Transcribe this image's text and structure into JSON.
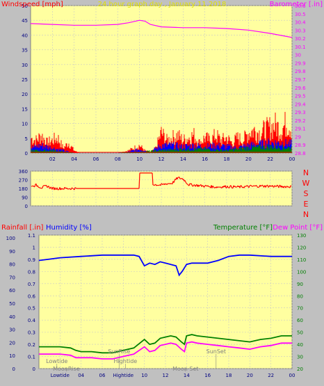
{
  "colors": {
    "background": "#c0c0c0",
    "plot_bg": "#ffffa0",
    "grid": "#c8c8c8",
    "wind": "#ff0000",
    "wind_blue": "#0000ff",
    "wind_green": "#008000",
    "barometer": "#ff00ff",
    "title": "#e0e000",
    "direction": "#ff0000",
    "humidity": "#0000ff",
    "temperature": "#008000",
    "dewpoint": "#ff00ff",
    "rainfall": "#ff0000",
    "axis_text": "#000080",
    "event_text": "#808080"
  },
  "chart_data": [
    {
      "type": "line",
      "title": "24 hour graph day , January 11 2018",
      "y_left_label": "Windspeed [mph]",
      "y_right_label": "Barometer [.in]",
      "xlim": [
        0,
        24
      ],
      "x_ticks": [
        "02",
        "04",
        "06",
        "08",
        "10",
        "12",
        "14",
        "16",
        "18",
        "20",
        "22",
        "00"
      ],
      "y_left_ticks": [
        "0",
        "5",
        "10",
        "15",
        "20",
        "25",
        "30",
        "35",
        "40",
        "45",
        "50"
      ],
      "y_left_lim": [
        0,
        50
      ],
      "y_right_ticks": [
        "28.8",
        "28.9",
        "29",
        "29.1",
        "29.2",
        "29.3",
        "29.4",
        "29.5",
        "29.6",
        "29.7",
        "29.8",
        "29.9",
        "30",
        "30.1",
        "30.2",
        "30.3",
        "30.4",
        "30.5",
        "30.6"
      ],
      "y_right_lim": [
        28.8,
        30.6
      ],
      "grid": true,
      "series": [
        {
          "key": "wind_gust",
          "x": [
            0,
            0.5,
            1,
            1.5,
            2,
            2.5,
            3,
            3.5,
            4,
            4.5,
            5,
            6,
            7,
            8,
            9,
            9.5,
            10,
            10.5,
            11,
            11.5,
            12,
            12.5,
            13,
            13.5,
            14,
            14.5,
            15,
            15.5,
            16,
            16.5,
            17,
            17.5,
            18,
            18.5,
            19,
            19.5,
            20,
            20.5,
            21,
            21.5,
            22,
            22.5,
            23,
            23.5,
            24
          ],
          "y": [
            6,
            5,
            7,
            4,
            5,
            6,
            2,
            4,
            1,
            0,
            0,
            0,
            0,
            0,
            1,
            2,
            3,
            1,
            0,
            2,
            8,
            5,
            6,
            7,
            5,
            6,
            7,
            4,
            6,
            5,
            7,
            5,
            6,
            4,
            6,
            5,
            8,
            9,
            8,
            9,
            10,
            11,
            9,
            12,
            10
          ]
        },
        {
          "key": "wind_avg",
          "x": [
            0,
            1,
            2,
            3,
            4,
            5,
            8,
            9,
            10,
            11,
            12,
            13,
            14,
            15,
            16,
            17,
            18,
            19,
            20,
            21,
            22,
            23,
            24
          ],
          "y": [
            2,
            3,
            2,
            1,
            0,
            0,
            0,
            0.5,
            1.5,
            0.5,
            3,
            3,
            2.5,
            3,
            2.5,
            3,
            2.5,
            2,
            3,
            3.5,
            4,
            4,
            3.5
          ]
        },
        {
          "key": "wind_low",
          "x": [
            0,
            2,
            4,
            6,
            8,
            10,
            12,
            14,
            16,
            18,
            20,
            22,
            24
          ],
          "y": [
            1,
            1,
            0,
            0,
            0,
            0.5,
            1,
            1.5,
            1.5,
            1,
            2,
            2.5,
            2
          ]
        },
        {
          "key": "barometer",
          "x": [
            0,
            2,
            4,
            6,
            8,
            9,
            10,
            10.5,
            11,
            12,
            14,
            16,
            18,
            20,
            22,
            24
          ],
          "y": [
            30.38,
            30.37,
            30.36,
            30.36,
            30.37,
            30.39,
            30.42,
            30.41,
            30.37,
            30.34,
            30.33,
            30.33,
            30.32,
            30.3,
            30.26,
            30.21
          ]
        }
      ]
    },
    {
      "type": "line",
      "title": "",
      "xlim": [
        0,
        24
      ],
      "y_left_ticks": [
        "360",
        "270",
        "180",
        "90",
        "0"
      ],
      "y_left_lim": [
        0,
        360
      ],
      "compass_labels": [
        "N",
        "W",
        "S",
        "E",
        "N"
      ],
      "grid": true,
      "series": [
        {
          "key": "wind_direction",
          "x": [
            0,
            0.5,
            1,
            1.5,
            2,
            3,
            4,
            5,
            6,
            7,
            8,
            9,
            10,
            10.01,
            11.2,
            11.21,
            11.5,
            12,
            12.5,
            13,
            13.5,
            14,
            14.5,
            15,
            16,
            17,
            18,
            19,
            20,
            21,
            22,
            23,
            24
          ],
          "y": [
            200,
            215,
            190,
            205,
            180,
            180,
            180,
            180,
            180,
            180,
            180,
            180,
            180,
            340,
            340,
            215,
            220,
            215,
            230,
            235,
            290,
            280,
            220,
            215,
            205,
            195,
            200,
            195,
            200,
            205,
            205,
            200,
            200
          ]
        }
      ]
    },
    {
      "type": "line",
      "title": "",
      "y_left_outer_label": "Rainfall [.in]",
      "y_left_label": "Humidity [%]",
      "y_right_label": "Temperature [°F]",
      "y_right2_label": "Dew Point [°F]",
      "xlim": [
        0,
        24
      ],
      "x_ticks": [
        "Lowtide",
        "04",
        "06",
        "Hightide",
        "10",
        "12",
        "14",
        "16",
        "18",
        "20",
        "22",
        "00"
      ],
      "x_tick_values": [
        2,
        4,
        6,
        8,
        10,
        12,
        14,
        16,
        18,
        20,
        22,
        24
      ],
      "y_left_outer_ticks": [
        "0",
        "10",
        "20",
        "30",
        "40",
        "50",
        "60",
        "70",
        "80",
        "90",
        "100"
      ],
      "y_left_outer_lim": [
        0,
        100
      ],
      "y_left_ticks": [
        "0",
        "0.1",
        "0.2",
        "0.3",
        "0.4",
        "0.5",
        "0.6",
        "0.7",
        "0.8",
        "0.9",
        "1",
        "1.1"
      ],
      "y_left_lim": [
        0,
        1.1
      ],
      "y_right_ticks": [
        "20",
        "30",
        "40",
        "50",
        "60",
        "70",
        "80",
        "90",
        "100",
        "110",
        "120",
        "130"
      ],
      "y_right_lim": [
        20,
        130
      ],
      "grid": true,
      "series": [
        {
          "key": "humidity",
          "x": [
            0,
            1,
            2,
            4,
            6,
            8,
            9,
            9.5,
            10,
            10.5,
            11,
            11.5,
            12,
            12.5,
            13,
            13.3,
            13.6,
            14,
            14.5,
            15,
            16,
            17,
            18,
            19,
            20,
            22,
            24
          ],
          "y": [
            81,
            82,
            83,
            84,
            85,
            85,
            85,
            84,
            77,
            79,
            78,
            80,
            79,
            78,
            77,
            70,
            73,
            78,
            79,
            79,
            79,
            81,
            84,
            85,
            85,
            84,
            84
          ]
        },
        {
          "key": "temperature",
          "x": [
            0,
            1,
            2,
            3,
            3.5,
            4,
            5,
            6,
            7,
            8,
            9,
            10,
            10.5,
            11,
            11.5,
            12,
            12.5,
            13,
            13.5,
            13.8,
            14,
            14.5,
            15,
            16,
            17,
            18,
            19,
            20,
            21,
            22,
            23,
            24
          ],
          "y": [
            38,
            38,
            38,
            37,
            35,
            34,
            34,
            33,
            33,
            35,
            37,
            44,
            40,
            41,
            45,
            46,
            47,
            46,
            42,
            40,
            47,
            48,
            47,
            46,
            45,
            44,
            43,
            42,
            44,
            45,
            47,
            47
          ]
        },
        {
          "key": "dewpoint",
          "x": [
            0,
            1,
            2,
            3,
            3.5,
            4,
            5,
            6,
            7,
            8,
            9,
            10,
            10.5,
            11,
            11.5,
            12,
            12.5,
            13,
            13.5,
            13.8,
            14,
            14.5,
            15,
            16,
            17,
            18,
            19,
            20,
            21,
            22,
            23,
            24
          ],
          "y": [
            32,
            32,
            32,
            31,
            29,
            29,
            29,
            28,
            28,
            30,
            32,
            38,
            34,
            35,
            39,
            40,
            41,
            40,
            36,
            34,
            41,
            42,
            41,
            40,
            39,
            38,
            37,
            36,
            38,
            39,
            41,
            41
          ]
        }
      ],
      "events": [
        {
          "label": "Lowtide",
          "x": 1.7,
          "row": 0
        },
        {
          "label": "MoonRise",
          "x": 2.6,
          "row": 1
        },
        {
          "label": "SunRise",
          "x": 7.6,
          "row": -1
        },
        {
          "label": "Hightide",
          "x": 8.2,
          "row": 0
        },
        {
          "label": "Moon Set",
          "x": 13.9,
          "row": 1
        },
        {
          "label": "SunSet",
          "x": 16.8,
          "row": -1
        }
      ]
    }
  ]
}
